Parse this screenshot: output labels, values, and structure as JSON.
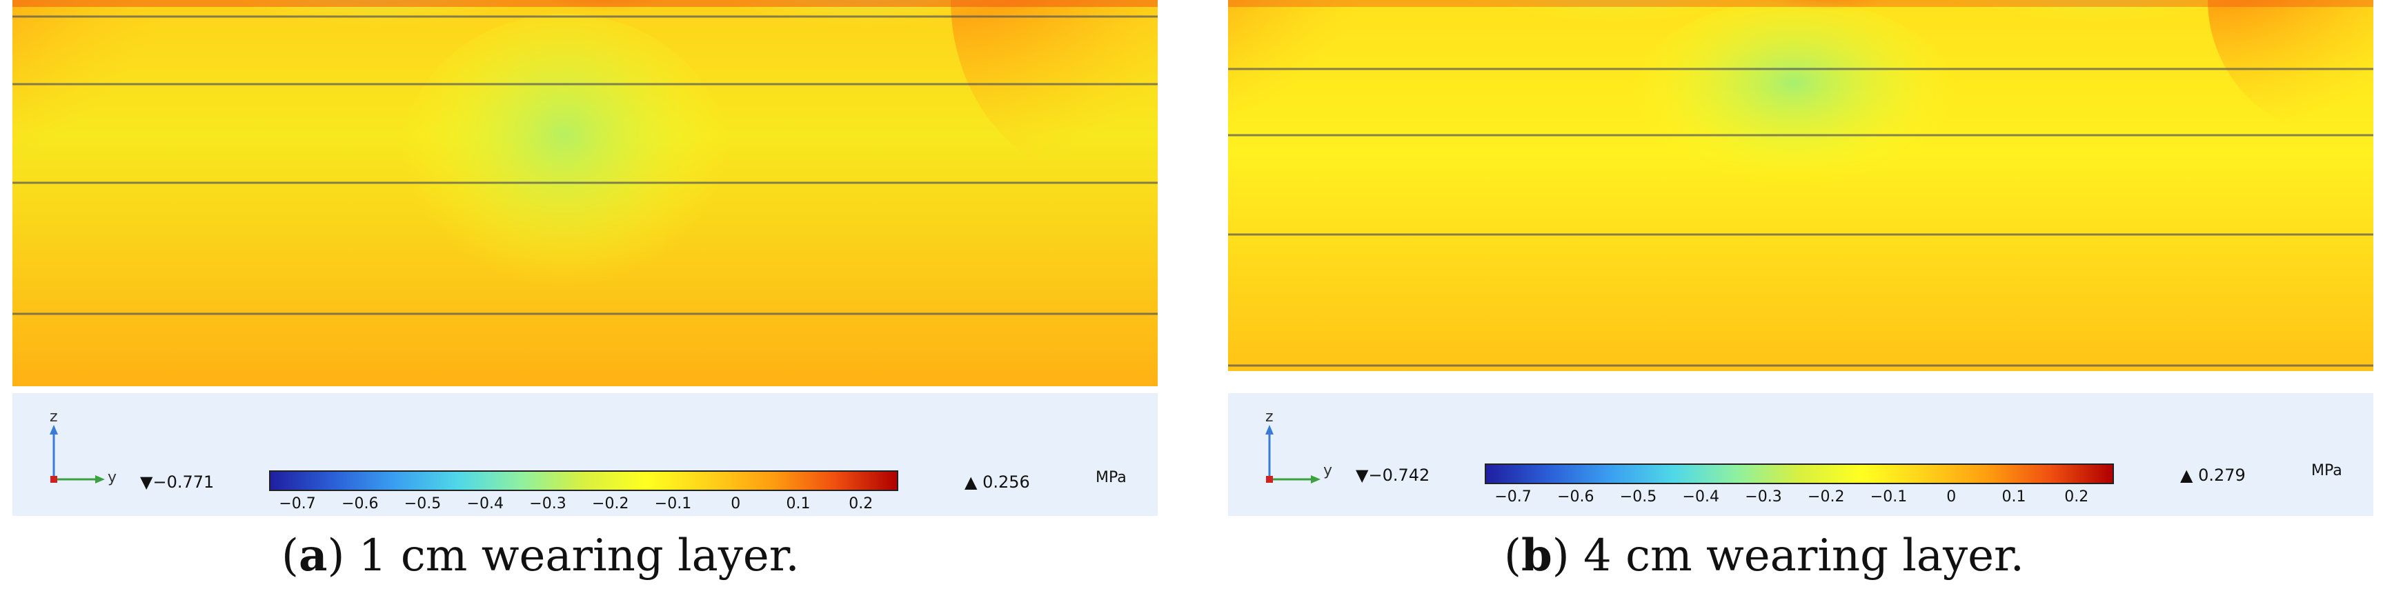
{
  "panels": [
    {
      "id": "a",
      "caption": {
        "letter": "a",
        "text": "1 cm wearing layer."
      },
      "min_label": "−0.771",
      "max_label": "0.256",
      "unit": "MPa",
      "colorbar_ticks": [
        "−0.7",
        "−0.6",
        "−0.5",
        "−0.4",
        "−0.3",
        "−0.2",
        "−0.1",
        "0",
        "0.1",
        "0.2"
      ],
      "axis_labels": {
        "z": "z",
        "y": "y"
      }
    },
    {
      "id": "b",
      "caption": {
        "letter": "b",
        "text": "4 cm wearing layer."
      },
      "min_label": "−0.742",
      "max_label": "0.279",
      "unit": "MPa",
      "colorbar_ticks": [
        "−0.7",
        "−0.6",
        "−0.5",
        "−0.4",
        "−0.3",
        "−0.2",
        "−0.1",
        "0",
        "0.1",
        "0.2"
      ],
      "axis_labels": {
        "z": "z",
        "y": "y"
      }
    }
  ],
  "colors": {
    "colormap": [
      "#1f1fa0",
      "#2b5fd8",
      "#3aa0f0",
      "#50d8e8",
      "#8ff0a0",
      "#d8f040",
      "#ffff20",
      "#ffd21a",
      "#ff9e10",
      "#f05010",
      "#b00000"
    ],
    "legend_bg": "#e8f1fb"
  }
}
